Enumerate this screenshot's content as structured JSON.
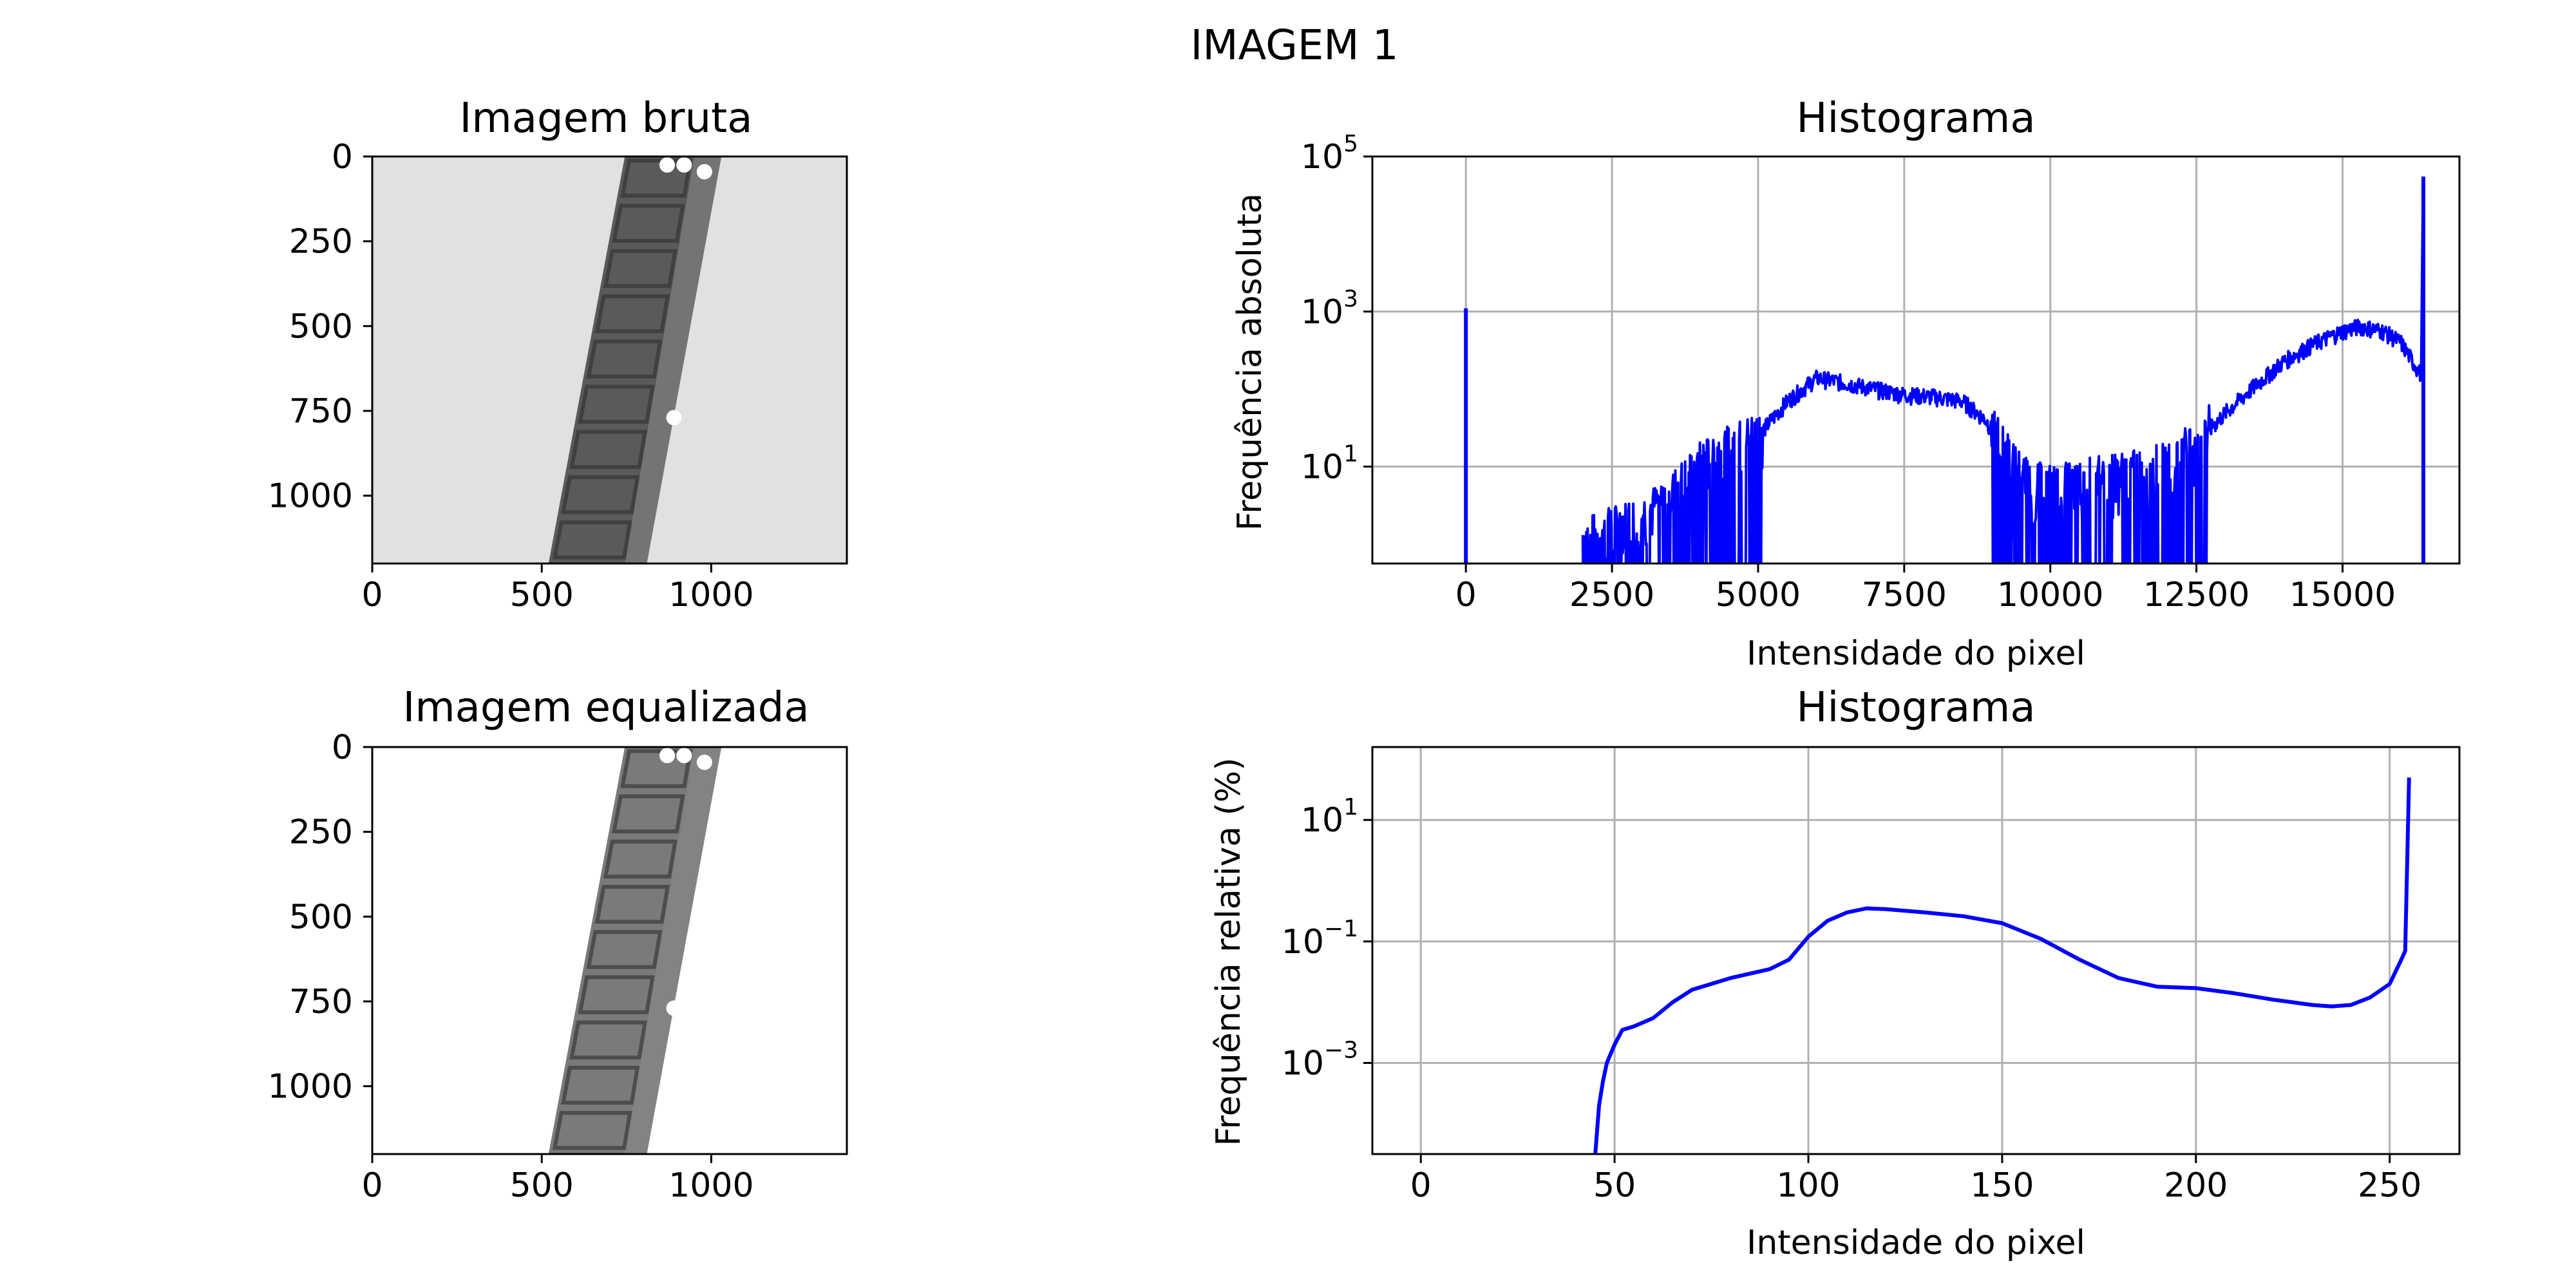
{
  "figure": {
    "suptitle": "IMAGEM 1"
  },
  "chart_data": [
    {
      "type": "image",
      "title": "Imagem bruta",
      "xticks": [
        "0",
        "500",
        "1000"
      ],
      "yticks": [
        "0",
        "250",
        "500",
        "750",
        "1000"
      ],
      "xlim": [
        0,
        1400
      ],
      "ylim": [
        1200,
        0
      ],
      "xtick_values": [
        0,
        500,
        1000
      ],
      "ytick_values": [
        0,
        250,
        500,
        750,
        1000
      ],
      "background_gray": "#e1e1e1",
      "strip_gray": "#5a5a5a"
    },
    {
      "type": "line",
      "title": "Histograma",
      "xlabel": "Intensidade do pixel",
      "ylabel": "Frequência absoluta",
      "yscale": "log",
      "xlim": [
        -1600,
        17000
      ],
      "ylim_log10": [
        -0.25,
        5.0
      ],
      "grid": true,
      "xticks": [
        0,
        2500,
        5000,
        7500,
        10000,
        12500,
        15000
      ],
      "xtick_labels": [
        "0",
        "2500",
        "5000",
        "7500",
        "10000",
        "12500",
        "15000"
      ],
      "yticks": [
        {
          "exp": 1,
          "base": "10",
          "sup": "1"
        },
        {
          "exp": 3,
          "base": "10",
          "sup": "3"
        },
        {
          "exp": 5,
          "base": "10",
          "sup": "5"
        }
      ],
      "color": "#0000ff",
      "spikes": [
        {
          "x": 0,
          "y": 1100
        },
        {
          "x": 16383,
          "y": 55000
        }
      ],
      "x": [
        2000,
        2500,
        3000,
        3500,
        4000,
        4500,
        5000,
        5500,
        6000,
        6500,
        7000,
        7500,
        8000,
        8500,
        8900,
        9300,
        9600,
        10000,
        10500,
        11000,
        11500,
        12000,
        12500,
        13000,
        13500,
        14000,
        14500,
        15000,
        15300,
        15700,
        16000,
        16350
      ],
      "values": [
        1,
        1.5,
        2,
        4,
        10,
        16,
        25,
        70,
        140,
        120,
        100,
        85,
        80,
        70,
        40,
        12,
        6,
        5,
        6,
        7,
        8,
        10,
        20,
        50,
        110,
        230,
        380,
        560,
        650,
        560,
        400,
        150
      ],
      "noise_min": 0.5
    },
    {
      "type": "image",
      "title": "Imagem equalizada",
      "xticks": [
        "0",
        "500",
        "1000"
      ],
      "yticks": [
        "0",
        "250",
        "500",
        "750",
        "1000"
      ],
      "xlim": [
        0,
        1400
      ],
      "ylim": [
        1200,
        0
      ],
      "xtick_values": [
        0,
        500,
        1000
      ],
      "ytick_values": [
        0,
        250,
        500,
        750,
        1000
      ],
      "background_gray": "#ffffff",
      "strip_gray": "#7a7a7a"
    },
    {
      "type": "line",
      "title": "Histograma",
      "xlabel": "Intensidade do pixel",
      "ylabel": "Frequência relativa (%)",
      "yscale": "log",
      "xlim": [
        -12.5,
        268
      ],
      "ylim_log10": [
        -4.5,
        2.2
      ],
      "grid": true,
      "xticks": [
        0,
        50,
        100,
        150,
        200,
        250
      ],
      "xtick_labels": [
        "0",
        "50",
        "100",
        "150",
        "200",
        "250"
      ],
      "yticks": [
        {
          "exp": 1,
          "base": "10",
          "sup": "1"
        },
        {
          "exp": -1,
          "base": "10",
          "sup": "−1"
        },
        {
          "exp": -3,
          "base": "10",
          "sup": "−3"
        }
      ],
      "color": "#0000ff",
      "x": [
        45,
        46,
        47,
        48,
        50,
        52,
        55,
        60,
        65,
        70,
        80,
        90,
        95,
        100,
        105,
        110,
        115,
        120,
        130,
        140,
        150,
        160,
        170,
        180,
        190,
        200,
        210,
        220,
        230,
        235,
        240,
        245,
        250,
        253,
        254,
        255
      ],
      "values": [
        3e-05,
        0.0002,
        0.0005,
        0.001,
        0.002,
        0.0035,
        0.004,
        0.0055,
        0.01,
        0.016,
        0.025,
        0.035,
        0.05,
        0.12,
        0.22,
        0.3,
        0.35,
        0.34,
        0.3,
        0.26,
        0.2,
        0.11,
        0.05,
        0.025,
        0.018,
        0.017,
        0.014,
        0.011,
        0.009,
        0.0085,
        0.009,
        0.012,
        0.02,
        0.05,
        0.07,
        50
      ]
    }
  ]
}
